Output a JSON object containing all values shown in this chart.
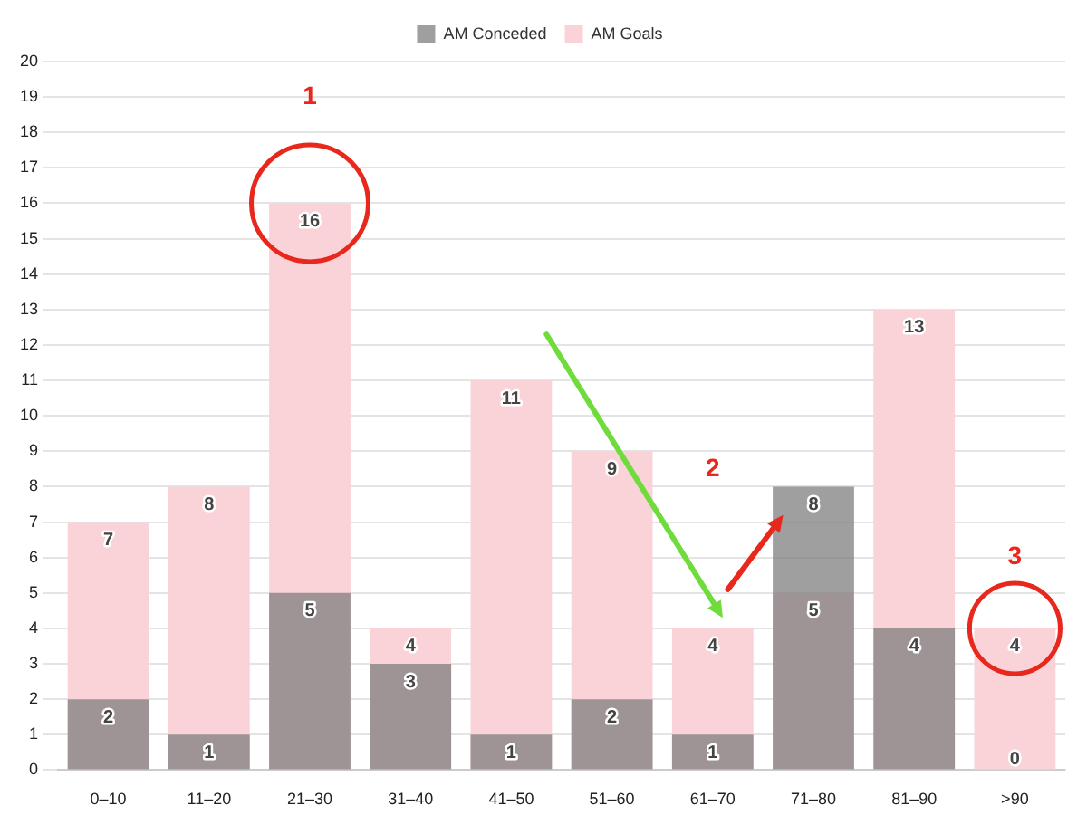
{
  "chart_data": {
    "type": "bar",
    "categories": [
      "0–10",
      "11–20",
      "21–30",
      "31–40",
      "41–50",
      "51–60",
      "61–70",
      "71–80",
      "81–90",
      ">90"
    ],
    "series": [
      {
        "name": "AM Conceded",
        "color": "#7f7f7f",
        "values": [
          2,
          1,
          5,
          3,
          1,
          2,
          1,
          8,
          4,
          0
        ]
      },
      {
        "name": "AM Goals",
        "color": "#f9d3d8",
        "values": [
          7,
          8,
          16,
          4,
          11,
          9,
          4,
          5,
          13,
          4
        ]
      }
    ],
    "ylim": [
      0,
      20
    ],
    "yticks": [
      0,
      1,
      2,
      3,
      4,
      5,
      6,
      7,
      8,
      9,
      10,
      11,
      12,
      13,
      14,
      15,
      16,
      17,
      18,
      19,
      20
    ],
    "grid": "y",
    "legend": "top",
    "data_labels": true,
    "annotations": [
      "1",
      "2",
      "3"
    ]
  }
}
